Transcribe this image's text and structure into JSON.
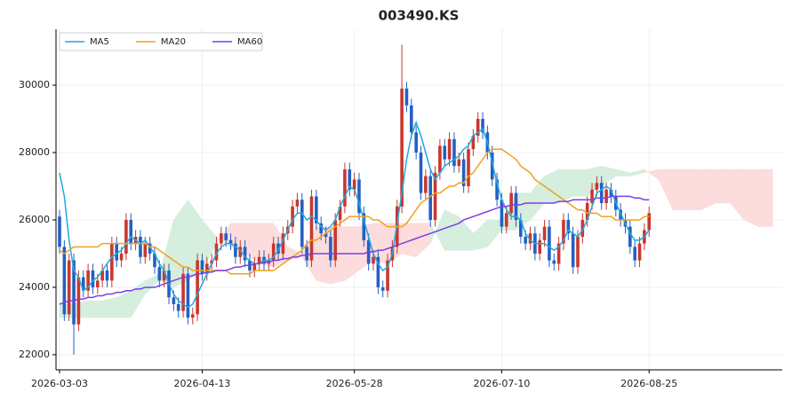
{
  "chart_data": {
    "type": "candlestick",
    "title": "003490.KS",
    "xlim": [
      -0.75,
      152
    ],
    "ylim": [
      21550,
      31660
    ],
    "xticks": [
      {
        "value": 0,
        "label": "2026-03-03"
      },
      {
        "value": 30,
        "label": "2026-04-13"
      },
      {
        "value": 62,
        "label": "2026-05-28"
      },
      {
        "value": 93,
        "label": "2026-07-10"
      },
      {
        "value": 124,
        "label": "2026-08-25"
      }
    ],
    "yticks": [
      22000,
      24000,
      26000,
      28000,
      30000
    ],
    "grid": true,
    "legend": "upper left",
    "up_color": "#c8372d",
    "down_color": "#2360c4",
    "open": [
      26100,
      25200,
      23200,
      24800,
      22900,
      24300,
      23900,
      24500,
      24000,
      24200,
      24500,
      24200,
      25300,
      24800,
      25000,
      26000,
      25300,
      25500,
      24900,
      25300,
      25000,
      24600,
      24200,
      24500,
      23700,
      23500,
      23300,
      24400,
      23100,
      23200,
      24800,
      24400,
      24700,
      24800,
      25300,
      25600,
      25400,
      25300,
      24900,
      25200,
      24800,
      24500,
      24700,
      24900,
      24700,
      24800,
      25300,
      25000,
      25600,
      25800,
      26400,
      26600,
      25200,
      24800,
      26700,
      25900,
      25600,
      25500,
      24800,
      26000,
      26400,
      27500,
      26900,
      27200,
      26200,
      25400,
      24700,
      24900,
      24000,
      23900,
      24800,
      25200,
      26400,
      29900,
      29400,
      28600,
      28000,
      26800,
      27300,
      26000,
      27400,
      28200,
      27800,
      28400,
      27600,
      27800,
      27000,
      28100,
      28500,
      29000,
      28600,
      28000,
      27200,
      26600,
      25800,
      26200,
      26800,
      26000,
      25500,
      25300,
      25600,
      25000,
      25400,
      25800,
      24800,
      24700,
      25300,
      26000,
      25600,
      24600,
      25500,
      26000,
      26500,
      26900,
      27100,
      26500,
      26900,
      26700,
      26300,
      26000,
      25800,
      25200,
      24800,
      25300,
      25700
    ],
    "high": [
      26300,
      25400,
      25000,
      25000,
      24500,
      24500,
      24700,
      24700,
      24400,
      24700,
      24700,
      25500,
      25500,
      25200,
      26200,
      26200,
      25700,
      25700,
      25500,
      25500,
      25200,
      24800,
      24700,
      24700,
      23900,
      23700,
      24600,
      24600,
      23400,
      25000,
      25000,
      24900,
      25000,
      25500,
      25800,
      25800,
      25600,
      25500,
      25400,
      25400,
      25000,
      24900,
      25100,
      25100,
      25000,
      25500,
      25500,
      25800,
      26000,
      26600,
      26800,
      26800,
      25400,
      26900,
      26900,
      26100,
      25800,
      25700,
      26200,
      26600,
      27700,
      27700,
      27400,
      27400,
      26400,
      25600,
      25100,
      25100,
      24200,
      25000,
      25400,
      26600,
      31200,
      30100,
      29600,
      28800,
      28200,
      27500,
      27500,
      27600,
      28400,
      28400,
      28600,
      28600,
      28000,
      28000,
      28300,
      28700,
      29200,
      29200,
      28800,
      28200,
      27400,
      26800,
      26400,
      27000,
      27000,
      26200,
      25700,
      25800,
      25800,
      25600,
      26000,
      26000,
      25000,
      25500,
      26200,
      26200,
      25800,
      25700,
      26200,
      26700,
      27100,
      27300,
      27300,
      27100,
      27100,
      26900,
      26500,
      26200,
      26000,
      25400,
      25500,
      25900,
      26400
    ],
    "low": [
      25000,
      23000,
      23000,
      22000,
      22700,
      23700,
      23700,
      23800,
      23800,
      24000,
      24000,
      24000,
      24600,
      24600,
      24800,
      25100,
      25100,
      24700,
      24700,
      24800,
      24400,
      24000,
      24000,
      23500,
      23300,
      23100,
      23100,
      22900,
      22900,
      23000,
      24200,
      24200,
      24500,
      24600,
      25100,
      25200,
      25100,
      24700,
      24700,
      24600,
      24300,
      24300,
      24500,
      24500,
      24500,
      24600,
      24800,
      24800,
      25400,
      25600,
      26200,
      25000,
      24600,
      24600,
      25700,
      25400,
      25300,
      24600,
      24600,
      25800,
      26200,
      26700,
      26700,
      26000,
      25200,
      24500,
      24500,
      23800,
      23700,
      23700,
      24600,
      25000,
      26200,
      29200,
      28400,
      27800,
      26600,
      26600,
      25800,
      25800,
      27200,
      27600,
      27600,
      27400,
      27400,
      26800,
      26800,
      27900,
      28300,
      28400,
      27800,
      27000,
      26400,
      25600,
      25600,
      26000,
      25800,
      25300,
      25100,
      25100,
      24800,
      24800,
      25200,
      24600,
      24500,
      24500,
      25100,
      25400,
      24400,
      24400,
      25300,
      25800,
      26300,
      26700,
      26300,
      26300,
      26500,
      26100,
      25800,
      25600,
      25000,
      24600,
      24600,
      25100,
      25500
    ],
    "close": [
      25200,
      23200,
      24800,
      22900,
      24300,
      23900,
      24500,
      24000,
      24200,
      24500,
      24200,
      25300,
      24800,
      25000,
      26000,
      25300,
      25500,
      24900,
      25300,
      25000,
      24600,
      24200,
      24500,
      23700,
      23500,
      23300,
      24400,
      23100,
      23200,
      24800,
      24400,
      24700,
      24800,
      25300,
      25600,
      25400,
      25300,
      24900,
      25200,
      24800,
      24500,
      24700,
      24900,
      24700,
      24800,
      25300,
      25000,
      25600,
      25800,
      26400,
      26600,
      25200,
      24800,
      26700,
      25900,
      25600,
      25500,
      24800,
      26000,
      26400,
      27500,
      26900,
      27200,
      26200,
      25400,
      24700,
      24900,
      24000,
      23900,
      24800,
      25200,
      26400,
      29900,
      29400,
      28600,
      28000,
      26800,
      27300,
      26000,
      27400,
      28200,
      27800,
      28400,
      27600,
      27800,
      27000,
      28100,
      28500,
      29000,
      28600,
      28000,
      27200,
      26600,
      25800,
      26200,
      26800,
      26000,
      25500,
      25300,
      25600,
      25000,
      25400,
      25800,
      24800,
      24700,
      25300,
      26000,
      25600,
      24600,
      25500,
      26000,
      26500,
      26900,
      27100,
      26500,
      26900,
      26700,
      26300,
      26000,
      25800,
      25200,
      24800,
      25300,
      25700,
      26200
    ],
    "series": [
      {
        "name": "MA5",
        "color": "#1fa9e1",
        "values": [
          27400,
          26700,
          25400,
          24500,
          24300,
          23900,
          24000,
          24200,
          24300,
          24500,
          24700,
          24900,
          25000,
          25100,
          25300,
          25500,
          25400,
          25300,
          25400,
          25200,
          25000,
          24700,
          24500,
          24100,
          23800,
          23600,
          23500,
          23400,
          23500,
          23800,
          24100,
          24400,
          24700,
          25000,
          25200,
          25300,
          25300,
          25200,
          25100,
          24900,
          24800,
          24700,
          24700,
          24800,
          24800,
          24900,
          25100,
          25400,
          25700,
          26000,
          26200,
          26200,
          26000,
          26100,
          26000,
          25800,
          25700,
          25800,
          26000,
          26400,
          26700,
          27000,
          26900,
          26500,
          26000,
          25500,
          25000,
          24700,
          24500,
          24600,
          25000,
          25900,
          26800,
          27800,
          28500,
          28900,
          28500,
          28000,
          27500,
          27200,
          27400,
          27600,
          27700,
          27800,
          27900,
          28100,
          28200,
          28500,
          28600,
          28700,
          28300,
          27700,
          27100,
          26600,
          26300,
          26100,
          26100,
          26000,
          25600,
          25400,
          25300,
          25300,
          25300,
          25200,
          25100,
          25200,
          25400,
          25700,
          25600,
          25500,
          25700,
          26000,
          26400,
          26800,
          26900,
          27000,
          26900,
          26500,
          26200,
          25900,
          25600,
          25400,
          25400,
          25500,
          25700
        ]
      },
      {
        "name": "MA20",
        "color": "#f0a020",
        "values": [
          25100,
          25000,
          25100,
          25200,
          25200,
          25200,
          25200,
          25200,
          25200,
          25300,
          25300,
          25300,
          25300,
          25300,
          25300,
          25300,
          25300,
          25300,
          25300,
          25200,
          25200,
          25100,
          25000,
          24900,
          24800,
          24700,
          24600,
          24600,
          24500,
          24500,
          24500,
          24500,
          24500,
          24500,
          24500,
          24500,
          24400,
          24400,
          24400,
          24400,
          24400,
          24500,
          24500,
          24500,
          24500,
          24500,
          24600,
          24700,
          24800,
          24900,
          25000,
          25100,
          25300,
          25400,
          25400,
          25500,
          25600,
          25700,
          25800,
          25900,
          26000,
          26100,
          26100,
          26100,
          26100,
          26100,
          26000,
          26000,
          25900,
          25800,
          25800,
          25800,
          25800,
          25900,
          26100,
          26300,
          26500,
          26600,
          26700,
          26800,
          26800,
          26900,
          27000,
          27000,
          27100,
          27100,
          27300,
          27400,
          27600,
          27800,
          28000,
          28100,
          28100,
          28100,
          28000,
          27900,
          27800,
          27600,
          27500,
          27400,
          27200,
          27100,
          27000,
          26900,
          26800,
          26700,
          26600,
          26500,
          26400,
          26300,
          26300,
          26200,
          26200,
          26200,
          26100,
          26100,
          26100,
          26000,
          26000,
          26000,
          26000,
          26000,
          26000,
          26100,
          26100
        ]
      },
      {
        "name": "MA60",
        "color": "#7b3fe4",
        "values": [
          23500,
          23550,
          23600,
          23600,
          23650,
          23650,
          23700,
          23700,
          23750,
          23750,
          23800,
          23800,
          23850,
          23850,
          23900,
          23900,
          23950,
          23950,
          24000,
          24000,
          24000,
          24050,
          24100,
          24150,
          24200,
          24250,
          24300,
          24300,
          24350,
          24400,
          24400,
          24450,
          24450,
          24500,
          24500,
          24500,
          24550,
          24600,
          24600,
          24650,
          24650,
          24700,
          24700,
          24750,
          24750,
          24800,
          24800,
          24850,
          24850,
          24900,
          24900,
          24950,
          24950,
          25000,
          25000,
          25000,
          25000,
          25000,
          25000,
          25000,
          25000,
          25000,
          25000,
          25000,
          25000,
          25050,
          25050,
          25100,
          25100,
          25150,
          25200,
          25250,
          25300,
          25350,
          25400,
          25450,
          25500,
          25550,
          25600,
          25650,
          25700,
          25750,
          25800,
          25850,
          25900,
          26000,
          26050,
          26100,
          26150,
          26200,
          26250,
          26300,
          26350,
          26400,
          26400,
          26450,
          26450,
          26450,
          26500,
          26500,
          26500,
          26500,
          26500,
          26500,
          26500,
          26550,
          26550,
          26550,
          26600,
          26600,
          26600,
          26600,
          26600,
          26650,
          26650,
          26650,
          26700,
          26700,
          26700,
          26700,
          26700,
          26650,
          26650,
          26600,
          26600
        ]
      }
    ],
    "cloud": {
      "x": [
        0,
        3,
        6,
        9,
        12,
        15,
        18,
        21,
        24,
        27,
        30,
        33,
        36,
        39,
        42,
        45,
        48,
        51,
        54,
        57,
        60,
        63,
        66,
        69,
        72,
        75,
        78,
        81,
        84,
        87,
        90,
        93,
        96,
        99,
        102,
        105,
        108,
        111,
        114,
        117,
        120,
        123,
        126,
        129,
        132,
        135,
        138,
        141,
        144,
        147,
        150
      ],
      "span_a": [
        23500,
        23500,
        23600,
        23600,
        23700,
        23900,
        24200,
        24400,
        26000,
        26600,
        26000,
        25500,
        25200,
        25000,
        24700,
        24600,
        24800,
        24900,
        24200,
        24100,
        24200,
        24500,
        24800,
        24700,
        25000,
        24900,
        25300,
        26300,
        26100,
        25600,
        26000,
        26000,
        26800,
        26800,
        27300,
        27500,
        27500,
        27500,
        27600,
        27500,
        27400,
        27500,
        27200,
        26300,
        26300,
        26300,
        26500,
        26500,
        26000,
        25800,
        25800
      ],
      "span_b": [
        23100,
        23100,
        23100,
        23100,
        23100,
        23100,
        23800,
        24200,
        24000,
        24200,
        24500,
        25300,
        25900,
        25900,
        25900,
        25900,
        25200,
        25000,
        25800,
        25800,
        25800,
        25800,
        25900,
        25900,
        25900,
        25900,
        25900,
        25100,
        25100,
        25100,
        25200,
        25700,
        25700,
        26000,
        26500,
        26500,
        26700,
        26700,
        27000,
        27300,
        27300,
        27400,
        27500,
        27500,
        27500,
        27500,
        27500,
        27500,
        27500,
        27500,
        27500
      ],
      "up_color": "#d5eedd",
      "down_color": "#fcdcdc"
    }
  }
}
